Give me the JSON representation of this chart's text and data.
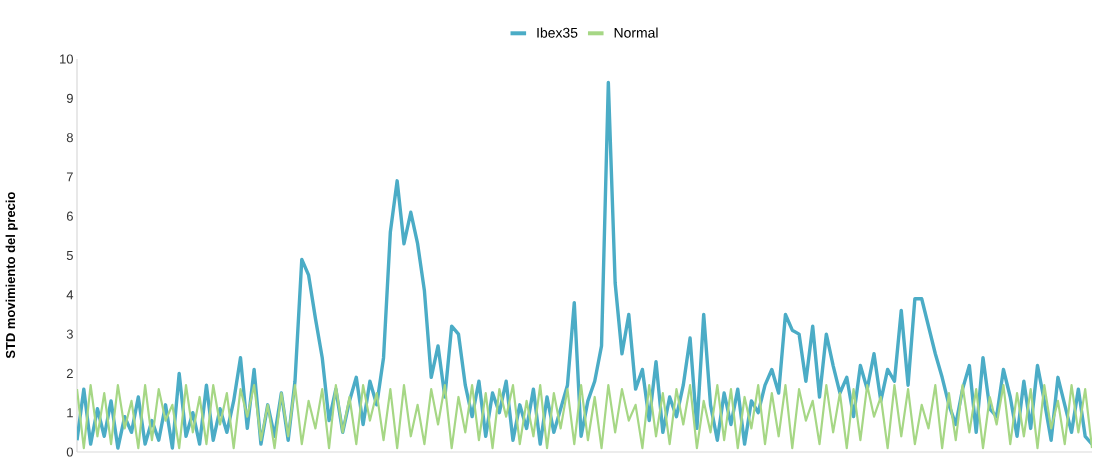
{
  "chart_data": {
    "type": "line",
    "ylabel": "STD  movimiento  del precio",
    "categories": [
      null,
      null,
      null,
      null,
      null,
      null,
      null,
      null,
      null,
      null,
      null,
      null,
      null,
      null,
      null,
      null,
      null,
      null,
      null,
      null,
      null,
      null,
      null,
      null,
      null,
      null,
      null,
      null,
      null,
      null,
      null,
      null,
      null,
      null,
      null,
      null,
      null,
      null,
      null,
      null,
      null,
      null,
      null,
      null,
      null,
      null,
      null,
      null,
      null,
      null,
      null,
      null,
      null,
      null,
      null,
      null,
      null,
      null,
      null,
      null,
      null,
      null,
      null,
      null,
      null,
      null,
      null,
      null,
      null,
      null,
      null,
      null,
      null,
      null,
      null,
      null,
      null,
      null,
      null,
      null,
      null,
      null,
      null,
      null,
      null,
      null,
      null,
      null,
      null,
      null,
      null,
      null,
      null,
      null,
      null,
      null,
      null,
      null,
      null,
      null,
      null,
      null,
      null,
      null,
      null,
      null,
      null,
      null,
      null,
      null,
      null,
      null,
      null,
      null,
      null,
      null,
      null,
      null,
      null,
      null,
      null,
      null,
      null,
      null,
      null,
      null,
      null,
      null,
      null,
      null,
      null,
      null,
      null,
      null,
      null,
      null,
      null,
      null,
      null,
      null,
      null,
      null,
      null,
      null,
      null,
      null,
      null,
      null,
      null,
      null
    ],
    "series": [
      {
        "name": "Ibex35",
        "color": "#4bacc6",
        "values": [
          0.3,
          1.6,
          0.2,
          1.1,
          0.4,
          1.3,
          0.1,
          0.9,
          0.5,
          1.4,
          0.2,
          0.8,
          0.3,
          1.2,
          0.1,
          2.0,
          0.4,
          1.0,
          0.2,
          1.7,
          0.3,
          1.1,
          0.5,
          1.3,
          2.4,
          0.6,
          2.1,
          0.2,
          1.2,
          0.4,
          1.5,
          0.3,
          1.8,
          4.9,
          4.5,
          3.4,
          2.4,
          0.8,
          1.6,
          0.5,
          1.3,
          1.9,
          0.7,
          1.8,
          1.2,
          2.4,
          5.6,
          6.9,
          5.3,
          6.1,
          5.3,
          4.1,
          1.9,
          2.7,
          1.4,
          3.2,
          3.0,
          1.7,
          0.9,
          1.8,
          0.4,
          1.5,
          1.0,
          1.8,
          0.3,
          1.2,
          0.6,
          1.6,
          0.2,
          1.4,
          0.5,
          1.1,
          1.7,
          3.8,
          0.4,
          1.3,
          1.8,
          2.7,
          9.4,
          4.3,
          2.5,
          3.5,
          1.6,
          2.1,
          0.8,
          2.3,
          0.5,
          1.4,
          0.9,
          1.7,
          2.9,
          0.6,
          3.5,
          1.2,
          0.3,
          1.5,
          0.7,
          1.6,
          0.2,
          1.3,
          1.0,
          1.7,
          2.1,
          1.5,
          3.5,
          3.1,
          3.0,
          1.8,
          3.2,
          1.4,
          3.0,
          2.2,
          1.5,
          1.9,
          0.9,
          2.2,
          1.6,
          2.5,
          1.3,
          2.1,
          1.8,
          3.6,
          1.7,
          3.9,
          3.9,
          3.2,
          2.5,
          1.9,
          1.2,
          0.7,
          1.6,
          2.2,
          0.5,
          2.4,
          1.1,
          0.9,
          2.1,
          1.4,
          0.4,
          1.8,
          0.6,
          2.2,
          1.3,
          0.3,
          1.9,
          1.2,
          0.5,
          1.6,
          0.4,
          0.2
        ]
      },
      {
        "name": "Normal",
        "color": "#a6d785",
        "values": [
          1.6,
          0.1,
          1.7,
          0.4,
          1.5,
          0.2,
          1.7,
          0.6,
          1.3,
          0.1,
          1.7,
          0.3,
          1.6,
          0.8,
          1.2,
          0.1,
          1.7,
          0.5,
          1.4,
          0.2,
          1.7,
          0.7,
          1.5,
          0.1,
          1.6,
          0.9,
          1.7,
          0.3,
          1.2,
          0.1,
          1.5,
          0.4,
          1.7,
          0.2,
          1.3,
          0.6,
          1.6,
          0.1,
          1.7,
          0.5,
          1.4,
          0.2,
          1.7,
          0.8,
          1.5,
          0.3,
          1.6,
          0.1,
          1.7,
          0.4,
          1.2,
          0.2,
          1.6,
          0.7,
          1.7,
          0.1,
          1.4,
          0.5,
          1.7,
          0.3,
          1.5,
          0.1,
          1.6,
          0.9,
          1.7,
          0.2,
          1.3,
          0.4,
          1.7,
          0.1,
          1.5,
          0.6,
          1.6,
          0.2,
          1.7,
          0.3,
          1.4,
          0.1,
          1.7,
          0.5,
          1.6,
          0.8,
          1.2,
          0.1,
          1.7,
          0.4,
          1.5,
          0.2,
          1.6,
          0.7,
          1.7,
          0.1,
          1.3,
          0.5,
          1.7,
          0.3,
          1.6,
          0.1,
          1.4,
          0.6,
          1.7,
          0.2,
          1.5,
          0.4,
          1.7,
          0.1,
          1.6,
          0.8,
          1.3,
          0.2,
          1.7,
          0.5,
          1.5,
          0.1,
          1.6,
          0.3,
          1.7,
          0.9,
          1.4,
          0.1,
          1.7,
          0.4,
          1.6,
          0.2,
          1.2,
          0.6,
          1.7,
          0.1,
          1.5,
          0.3,
          1.7,
          0.5,
          1.6,
          0.1,
          1.4,
          0.7,
          1.7,
          0.2,
          1.5,
          0.4,
          1.6,
          0.1,
          1.7,
          0.6,
          1.3,
          0.2,
          1.7,
          0.5,
          1.6,
          0.1
        ]
      }
    ],
    "ylim": [
      0,
      10
    ],
    "yticks": [
      0,
      1,
      2,
      3,
      4,
      5,
      6,
      7,
      8,
      9,
      10
    ],
    "legend": "top",
    "grid": false,
    "marker": "none",
    "line_style": "solid"
  }
}
